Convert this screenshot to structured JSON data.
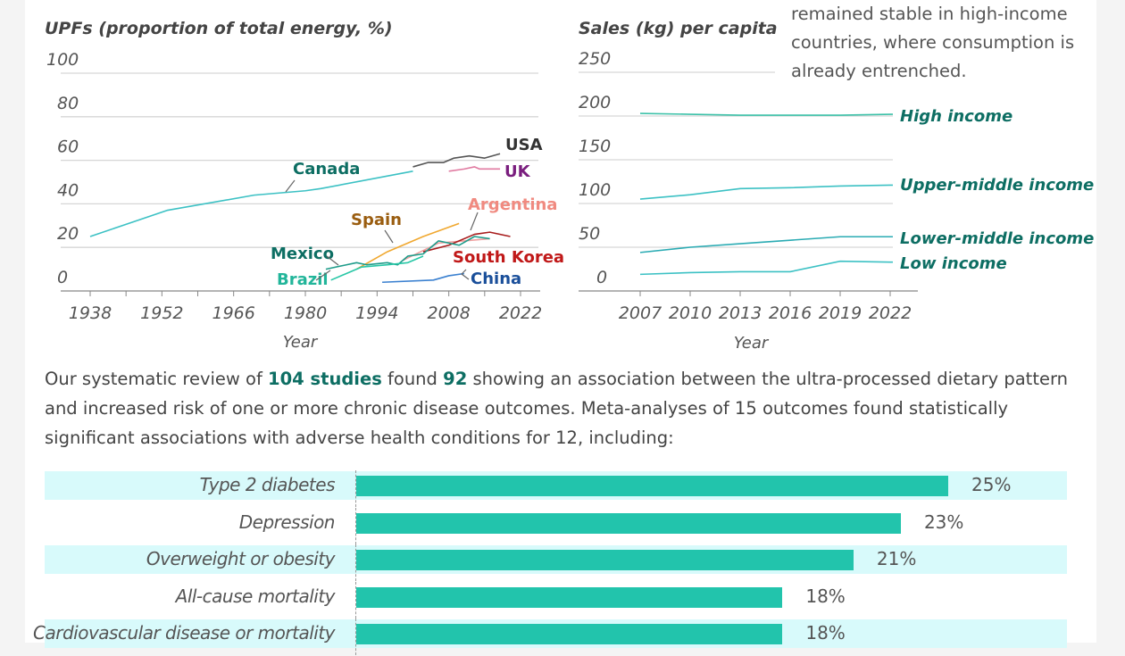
{
  "note_text": "remained stable in high-income countries, where consumption is already entrenched.",
  "paragraph": {
    "pre": "Our systematic review of ",
    "studies": "104 studies",
    "mid1": " found ",
    "found": "92",
    "rest": " showing an association between the ultra-processed dietary pattern and increased risk of one or more chronic disease outcomes. Meta-analyses of 15 outcomes found statistically significant associations with adverse health conditions for 12, including:"
  },
  "colors": {
    "teal": "#22c4ac",
    "line_teal": "#3cc1c4",
    "label_dark_teal": "#0d6e63",
    "bar_band": "#d8fafb"
  },
  "chart_data": [
    {
      "type": "line",
      "title": "UPFs (proportion of total energy, %)",
      "xlabel": "Year",
      "ylabel": "UPFs (proportion of total energy, %)",
      "xlim": [
        1932,
        2022
      ],
      "ylim": [
        0,
        100
      ],
      "yticks": [
        0,
        20,
        40,
        60,
        80,
        100
      ],
      "xticks": [
        1938,
        1952,
        1966,
        1980,
        1994,
        2008,
        2022
      ],
      "grid": true,
      "series": [
        {
          "name": "USA",
          "color": "#555555",
          "label_color": "#333333",
          "x": [
            2001,
            2004,
            2007,
            2009,
            2012,
            2015,
            2018
          ],
          "y": [
            57,
            59,
            59,
            61,
            62,
            61,
            63
          ]
        },
        {
          "name": "UK",
          "color": "#e07aa0",
          "label_color": "#7a1e7e",
          "x": [
            2008,
            2011,
            2013,
            2014,
            2016,
            2018
          ],
          "y": [
            55,
            56,
            57,
            56,
            56,
            56
          ]
        },
        {
          "name": "Canada",
          "color": "#3cc1c4",
          "label_color": "#0d6e63",
          "x": [
            1938,
            1953,
            1970,
            1980,
            1983,
            2001
          ],
          "y": [
            25,
            37,
            44,
            46,
            47,
            55
          ]
        },
        {
          "name": "Argentina",
          "color": "#f0a0a0",
          "label_color": "#f08a80",
          "x": [
            1999,
            2006,
            2016
          ],
          "y": [
            14,
            22,
            24
          ]
        },
        {
          "name": "Spain",
          "color": "#f0a830",
          "label_color": "#9a5d10",
          "x": [
            1990,
            1996,
            2003,
            2010
          ],
          "y": [
            10,
            18,
            25,
            31
          ]
        },
        {
          "name": "South Korea",
          "color": "#a81d1d",
          "label_color": "#c01818",
          "x": [
            2003,
            2008,
            2013,
            2016,
            2020
          ],
          "y": [
            18,
            21,
            26,
            27,
            25
          ]
        },
        {
          "name": "Mexico",
          "color": "#1e9c8a",
          "label_color": "#0d6e63",
          "x": [
            1984,
            1988,
            1990,
            1992,
            1996,
            1998,
            2000,
            2003,
            2006,
            2010,
            2013,
            2016
          ],
          "y": [
            10,
            12,
            13,
            12,
            13,
            12,
            16,
            17,
            23,
            21,
            25,
            24
          ]
        },
        {
          "name": "Brazil",
          "color": "#28c7a6",
          "label_color": "#22b59a",
          "x": [
            1985,
            1988,
            1991,
            1996,
            2000,
            2003
          ],
          "y": [
            5,
            8,
            11,
            12,
            13,
            16
          ]
        },
        {
          "name": "China",
          "color": "#3a80d0",
          "label_color": "#1a4f9a",
          "x": [
            1995,
            2005,
            2008,
            2011
          ],
          "y": [
            4,
            5,
            7,
            8
          ]
        }
      ]
    },
    {
      "type": "line",
      "title": "Sales (kg) per capita",
      "xlabel": "Year",
      "ylabel": "Sales (kg) per capita",
      "xlim": [
        2007,
        2022
      ],
      "ylim": [
        0,
        250
      ],
      "yticks": [
        0,
        50,
        100,
        150,
        200,
        250
      ],
      "xticks": [
        2007,
        2010,
        2013,
        2016,
        2019,
        2022
      ],
      "grid": true,
      "series": [
        {
          "name": "High income",
          "color": "#3cc1a8",
          "x": [
            2007,
            2010,
            2013,
            2016,
            2019,
            2022
          ],
          "y": [
            203,
            202,
            201,
            201,
            201,
            202
          ]
        },
        {
          "name": "Upper-middle income",
          "color": "#3cc1c4",
          "x": [
            2007,
            2010,
            2013,
            2016,
            2019,
            2022
          ],
          "y": [
            105,
            110,
            117,
            118,
            120,
            121
          ]
        },
        {
          "name": "Lower-middle income",
          "color": "#2aabb3",
          "x": [
            2007,
            2010,
            2013,
            2016,
            2019,
            2022
          ],
          "y": [
            44,
            50,
            54,
            58,
            62,
            62
          ]
        },
        {
          "name": "Low income",
          "color": "#3cc1c4",
          "x": [
            2007,
            2010,
            2013,
            2016,
            2019,
            2022
          ],
          "y": [
            19,
            21,
            22,
            22,
            34,
            33
          ]
        }
      ]
    },
    {
      "type": "bar",
      "orientation": "horizontal",
      "title": "",
      "categories": [
        "Type 2 diabetes",
        "Depression",
        "Overweight or obesity",
        "All-cause mortality",
        "Cardiovascular disease or mortality"
      ],
      "values": [
        25,
        23,
        21,
        18,
        18
      ],
      "value_labels": [
        "25%",
        "23%",
        "21%",
        "18%",
        "18%"
      ],
      "xlim": [
        0,
        32
      ]
    }
  ]
}
